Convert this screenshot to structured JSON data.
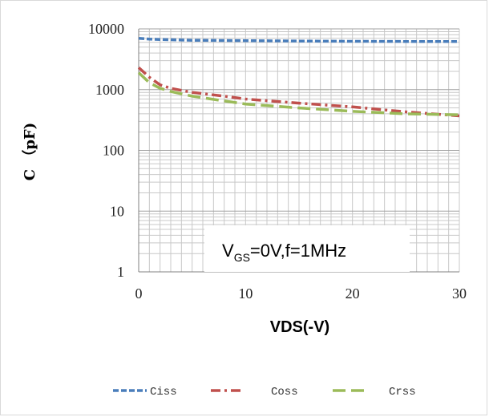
{
  "chart_data": {
    "type": "line",
    "title": "",
    "xlabel": "VDS(-V)",
    "ylabel": "C （pF)",
    "xlim": [
      0,
      30
    ],
    "ylim": [
      1,
      10000
    ],
    "y_scale": "log",
    "grid": true,
    "legend_position": "bottom",
    "x_ticks": [
      "0",
      "10",
      "20",
      "30"
    ],
    "y_ticks": [
      "1",
      "10",
      "100",
      "1000",
      "10000"
    ],
    "annotation": {
      "main": "V",
      "sub": "GS",
      "rest": "=0V,f=1MHz"
    },
    "series": [
      {
        "name": "Ciss",
        "color": "#4a7ebb",
        "dash": "dashed",
        "x": [
          0,
          1,
          2,
          5,
          10,
          15,
          20,
          25,
          30
        ],
        "y": [
          7000,
          6800,
          6700,
          6500,
          6400,
          6300,
          6250,
          6200,
          6200
        ]
      },
      {
        "name": "Coss",
        "color": "#c0504d",
        "dash": "dashdot",
        "x": [
          0,
          1,
          2,
          3,
          5,
          8,
          10,
          15,
          20,
          25,
          30
        ],
        "y": [
          2300,
          1600,
          1200,
          1050,
          900,
          780,
          700,
          600,
          520,
          430,
          370
        ]
      },
      {
        "name": "Crss",
        "color": "#9bbb59",
        "dash": "longdash",
        "x": [
          0,
          1,
          2,
          3,
          5,
          8,
          10,
          15,
          20,
          25,
          30
        ],
        "y": [
          1900,
          1300,
          1050,
          930,
          780,
          650,
          580,
          500,
          440,
          400,
          385
        ]
      }
    ]
  }
}
